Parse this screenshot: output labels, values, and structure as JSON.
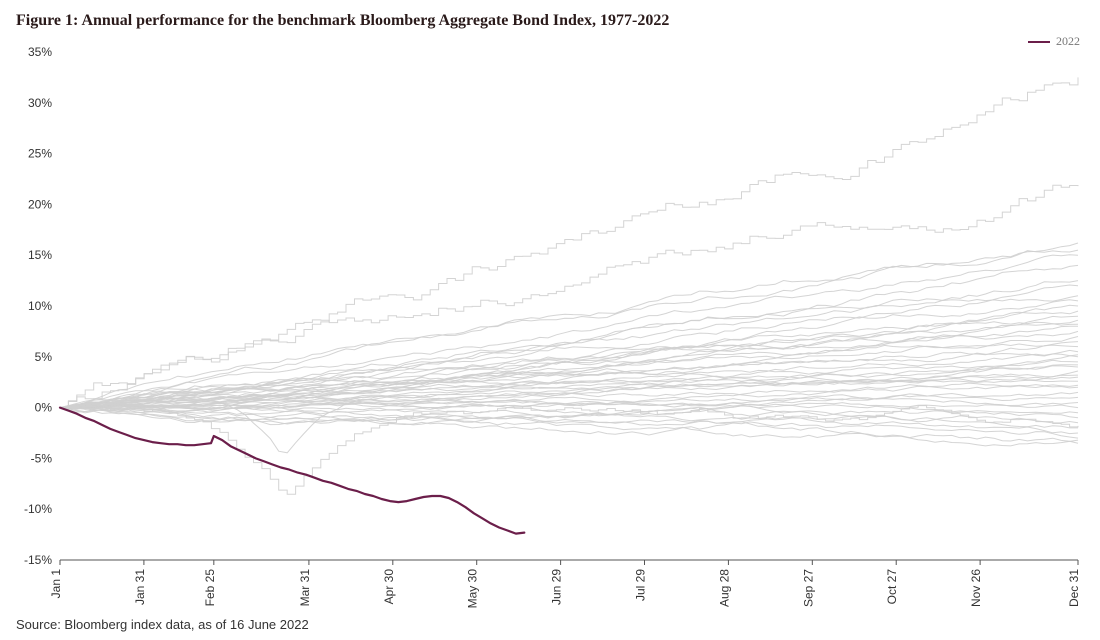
{
  "title": "Figure 1: Annual performance for the benchmark Bloomberg Aggregate Bond Index, 1977-2022",
  "source": "Source: Bloomberg index data, as of 16 June 2022",
  "legend": {
    "label": "2022",
    "color": "#6b1e4a",
    "width": 2
  },
  "chart": {
    "type": "line-fan",
    "background_color": "#ffffff",
    "axis_color": "#555555",
    "y": {
      "min": -15,
      "max": 35,
      "step": 5,
      "suffix": "%",
      "tick_fontsize": 12,
      "tick_color": "#333333"
    },
    "x": {
      "days_min": 0,
      "days_max": 364,
      "tick_days": [
        0,
        30,
        55,
        89,
        119,
        149,
        179,
        209,
        239,
        269,
        299,
        329,
        364
      ],
      "tick_labels": [
        "Jan 1",
        "Jan 31",
        "Feb 25",
        "Mar 31",
        "Apr 30",
        "May 30",
        "Jun 29",
        "Jul 29",
        "Aug 28",
        "Sep 27",
        "Oct 27",
        "Nov 26",
        "Dec 31"
      ],
      "tick_fontsize": 12,
      "tick_color": "#333333",
      "rotate": -90
    },
    "historic_style": {
      "color": "#cfcfcf",
      "width": 1,
      "opacity": 0.9
    },
    "highlight_style": {
      "color": "#6b1e4a",
      "width": 2.2,
      "opacity": 1.0
    },
    "historic_series": [
      {
        "end": 32.5,
        "vol": 0.55,
        "stepped": true
      },
      {
        "end": 21.8,
        "vol": 0.55,
        "stepped": true
      },
      {
        "end": 16.2,
        "vol": 0.22
      },
      {
        "end": 15.5,
        "vol": 0.25
      },
      {
        "end": 15.0,
        "vol": 0.22
      },
      {
        "end": 14.0,
        "vol": 0.25
      },
      {
        "end": 12.5,
        "vol": 0.22
      },
      {
        "end": 12.0,
        "vol": 0.2
      },
      {
        "end": 11.0,
        "vol": 0.22
      },
      {
        "end": 10.5,
        "vol": 0.22
      },
      {
        "end": 10.0,
        "vol": 0.22
      },
      {
        "end": 9.5,
        "vol": 0.2
      },
      {
        "end": 9.0,
        "vol": 0.22
      },
      {
        "end": 8.6,
        "vol": 0.2
      },
      {
        "end": 8.2,
        "vol": 0.22
      },
      {
        "end": 8.0,
        "vol": 0.18
      },
      {
        "end": 7.5,
        "vol": 0.2
      },
      {
        "end": 7.0,
        "vol": 0.2
      },
      {
        "end": 6.5,
        "vol": 0.2
      },
      {
        "end": 6.0,
        "vol": 0.22
      },
      {
        "end": 5.5,
        "vol": 0.18
      },
      {
        "end": 5.2,
        "vol": 0.2
      },
      {
        "end": 5.0,
        "vol": 0.18
      },
      {
        "end": 4.5,
        "vol": 0.18
      },
      {
        "end": 4.2,
        "vol": 0.18
      },
      {
        "end": 4.0,
        "vol": 0.18
      },
      {
        "end": 3.6,
        "vol": 0.18
      },
      {
        "end": 3.2,
        "vol": 0.16
      },
      {
        "end": 3.0,
        "vol": 0.18
      },
      {
        "end": 2.6,
        "vol": 0.16
      },
      {
        "end": 2.2,
        "vol": 0.18,
        "dip": {
          "day": 80,
          "depth": -6,
          "width": 30
        }
      },
      {
        "end": 2.0,
        "vol": 0.16
      },
      {
        "end": 1.5,
        "vol": 0.16
      },
      {
        "end": 1.0,
        "vol": 0.16
      },
      {
        "end": 0.5,
        "vol": 0.16
      },
      {
        "end": 0.0,
        "vol": 0.16
      },
      {
        "end": -0.5,
        "vol": 0.18
      },
      {
        "end": -1.0,
        "vol": 0.18
      },
      {
        "end": -1.5,
        "vol": 0.18
      },
      {
        "end": -1.8,
        "vol": 0.3,
        "stepped": true,
        "dip": {
          "day": 80,
          "depth": -8.5,
          "width": 50
        }
      },
      {
        "end": -2.0,
        "vol": 0.2
      },
      {
        "end": -2.5,
        "vol": 0.2
      },
      {
        "end": -3.0,
        "vol": 0.22
      },
      {
        "end": -3.2,
        "vol": 0.22
      },
      {
        "end": -3.5,
        "vol": 0.22
      }
    ],
    "series_2022": [
      [
        0,
        0.0
      ],
      [
        3,
        -0.3
      ],
      [
        6,
        -0.6
      ],
      [
        9,
        -1.0
      ],
      [
        12,
        -1.3
      ],
      [
        15,
        -1.7
      ],
      [
        18,
        -2.1
      ],
      [
        21,
        -2.4
      ],
      [
        24,
        -2.7
      ],
      [
        27,
        -3.0
      ],
      [
        30,
        -3.2
      ],
      [
        33,
        -3.4
      ],
      [
        36,
        -3.5
      ],
      [
        39,
        -3.6
      ],
      [
        42,
        -3.6
      ],
      [
        45,
        -3.7
      ],
      [
        48,
        -3.7
      ],
      [
        51,
        -3.6
      ],
      [
        54,
        -3.5
      ],
      [
        55,
        -2.8
      ],
      [
        58,
        -3.2
      ],
      [
        61,
        -3.8
      ],
      [
        64,
        -4.2
      ],
      [
        67,
        -4.6
      ],
      [
        70,
        -5.0
      ],
      [
        73,
        -5.3
      ],
      [
        76,
        -5.6
      ],
      [
        79,
        -5.9
      ],
      [
        82,
        -6.1
      ],
      [
        85,
        -6.4
      ],
      [
        88,
        -6.6
      ],
      [
        91,
        -6.9
      ],
      [
        94,
        -7.2
      ],
      [
        97,
        -7.4
      ],
      [
        100,
        -7.7
      ],
      [
        103,
        -8.0
      ],
      [
        106,
        -8.2
      ],
      [
        109,
        -8.5
      ],
      [
        112,
        -8.7
      ],
      [
        115,
        -9.0
      ],
      [
        118,
        -9.2
      ],
      [
        121,
        -9.3
      ],
      [
        124,
        -9.2
      ],
      [
        127,
        -9.0
      ],
      [
        130,
        -8.8
      ],
      [
        133,
        -8.7
      ],
      [
        136,
        -8.7
      ],
      [
        139,
        -8.9
      ],
      [
        142,
        -9.3
      ],
      [
        145,
        -9.8
      ],
      [
        148,
        -10.4
      ],
      [
        151,
        -10.9
      ],
      [
        154,
        -11.4
      ],
      [
        157,
        -11.8
      ],
      [
        160,
        -12.1
      ],
      [
        163,
        -12.4
      ],
      [
        166,
        -12.3
      ]
    ]
  }
}
